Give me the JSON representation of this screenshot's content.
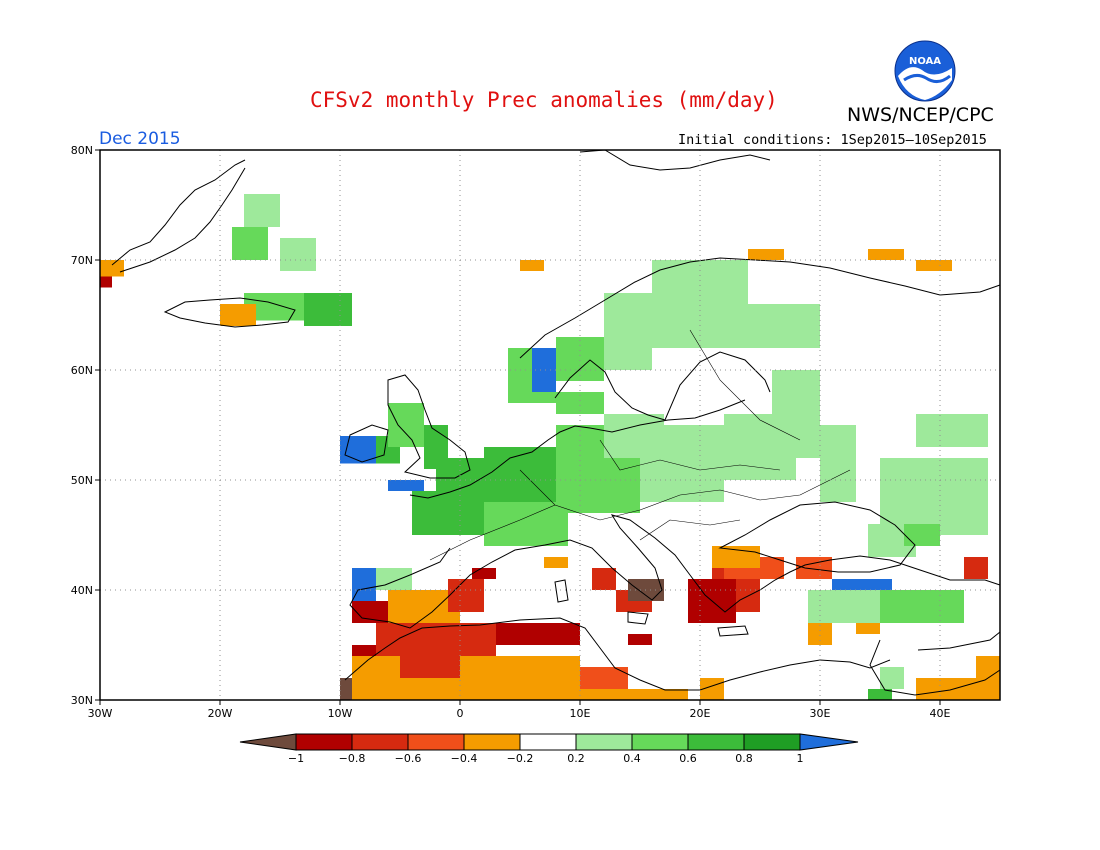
{
  "header": {
    "title": "CFSv2 monthly Prec anomalies (mm/day)",
    "agency": "NWS/NCEP/CPC",
    "logo_text": "NOAA",
    "month": "Dec 2015",
    "initial_conditions": "Initial conditions: 1Sep2015—10Sep2015"
  },
  "map": {
    "lat_labels": [
      "80N",
      "70N",
      "60N",
      "50N",
      "40N",
      "30N"
    ],
    "lon_labels": [
      "30W",
      "20W",
      "10W",
      "0",
      "10E",
      "20E",
      "30E",
      "40E"
    ],
    "extent": {
      "lon": [
        -30,
        45
      ],
      "lat": [
        30,
        80
      ]
    }
  },
  "colorbar": {
    "ticks": [
      "−1",
      "−0.8",
      "−0.6",
      "−0.4",
      "−0.2",
      "0.2",
      "0.4",
      "0.6",
      "0.8",
      "1"
    ],
    "colors": [
      "#6e4a3c",
      "#b00000",
      "#d62a10",
      "#f04f1a",
      "#f59c00",
      "#ffffff",
      "#9ee99b",
      "#66d95a",
      "#3cbc3a",
      "#1f9e24",
      "#1f6edb"
    ],
    "legend": [
      {
        "label": "< -1",
        "color": "#6e4a3c"
      },
      {
        "label": "-1 to -0.8",
        "color": "#b00000"
      },
      {
        "label": "-0.8 to -0.6",
        "color": "#d62a10"
      },
      {
        "label": "-0.6 to -0.4",
        "color": "#f04f1a"
      },
      {
        "label": "-0.4 to -0.2",
        "color": "#f59c00"
      },
      {
        "label": "-0.2 to 0.2",
        "color": "#ffffff"
      },
      {
        "label": "0.2 to 0.4",
        "color": "#9ee99b"
      },
      {
        "label": "0.4 to 0.6",
        "color": "#66d95a"
      },
      {
        "label": "0.6 to 0.8",
        "color": "#3cbc3a"
      },
      {
        "label": "0.8 to 1",
        "color": "#1f9e24"
      },
      {
        "label": "> 1",
        "color": "#1f6edb"
      }
    ]
  },
  "colors": {
    "title": "#e01010",
    "month": "#1a5ce0",
    "noaa_blue": "#1a5fd8"
  }
}
